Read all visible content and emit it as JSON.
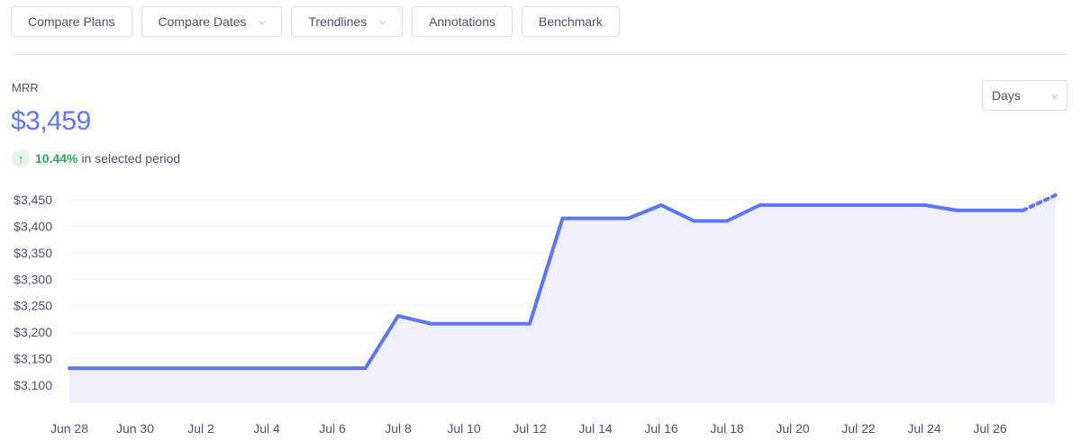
{
  "toolbar": {
    "buttons": [
      {
        "label": "Compare Plans",
        "dropdown": false
      },
      {
        "label": "Compare Dates",
        "dropdown": true
      },
      {
        "label": "Trendlines",
        "dropdown": true
      },
      {
        "label": "Annotations",
        "dropdown": false
      },
      {
        "label": "Benchmark",
        "dropdown": false
      }
    ]
  },
  "metric": {
    "label": "MRR",
    "value": "$3,459",
    "change_pct": "10.44%",
    "change_text": "in selected period",
    "change_direction": "up"
  },
  "period_select": {
    "value": "Days"
  },
  "colors": {
    "accent": "#5b76f7",
    "area": "#eef0fd",
    "positive": "#2fa659",
    "grid": "#eef0f4"
  },
  "chart_data": {
    "type": "area",
    "title": "",
    "xlabel": "",
    "ylabel": "",
    "x": [
      "Jun 28",
      "Jun 29",
      "Jun 30",
      "Jul 1",
      "Jul 2",
      "Jul 3",
      "Jul 4",
      "Jul 5",
      "Jul 6",
      "Jul 7",
      "Jul 8",
      "Jul 9",
      "Jul 10",
      "Jul 11",
      "Jul 12",
      "Jul 13",
      "Jul 14",
      "Jul 15",
      "Jul 16",
      "Jul 17",
      "Jul 18",
      "Jul 19",
      "Jul 20",
      "Jul 21",
      "Jul 22",
      "Jul 23",
      "Jul 24",
      "Jul 25",
      "Jul 26",
      "Jul 27",
      "Jul 28"
    ],
    "series": [
      {
        "values": [
          3132,
          3132,
          3132,
          3132,
          3132,
          3132,
          3132,
          3132,
          3132,
          3132,
          3231,
          3216,
          3216,
          3216,
          3216,
          3415,
          3415,
          3415,
          3440,
          3410,
          3410,
          3440,
          3440,
          3440,
          3440,
          3440,
          3440,
          3430,
          3430,
          3430,
          3459
        ],
        "projected_from_index": 29
      }
    ],
    "x_tick_labels": [
      "Jun 28",
      "Jun 30",
      "Jul 2",
      "Jul 4",
      "Jul 6",
      "Jul 8",
      "Jul 10",
      "Jul 12",
      "Jul 14",
      "Jul 16",
      "Jul 18",
      "Jul 20",
      "Jul 22",
      "Jul 24",
      "Jul 26"
    ],
    "y_ticks": [
      3100,
      3150,
      3200,
      3250,
      3300,
      3350,
      3400,
      3450
    ],
    "y_tick_labels": [
      "$3,100",
      "$3,150",
      "$3,200",
      "$3,250",
      "$3,300",
      "$3,350",
      "$3,400",
      "$3,450"
    ],
    "ylim": [
      3100,
      3450
    ],
    "grid": true,
    "legend": "none"
  }
}
